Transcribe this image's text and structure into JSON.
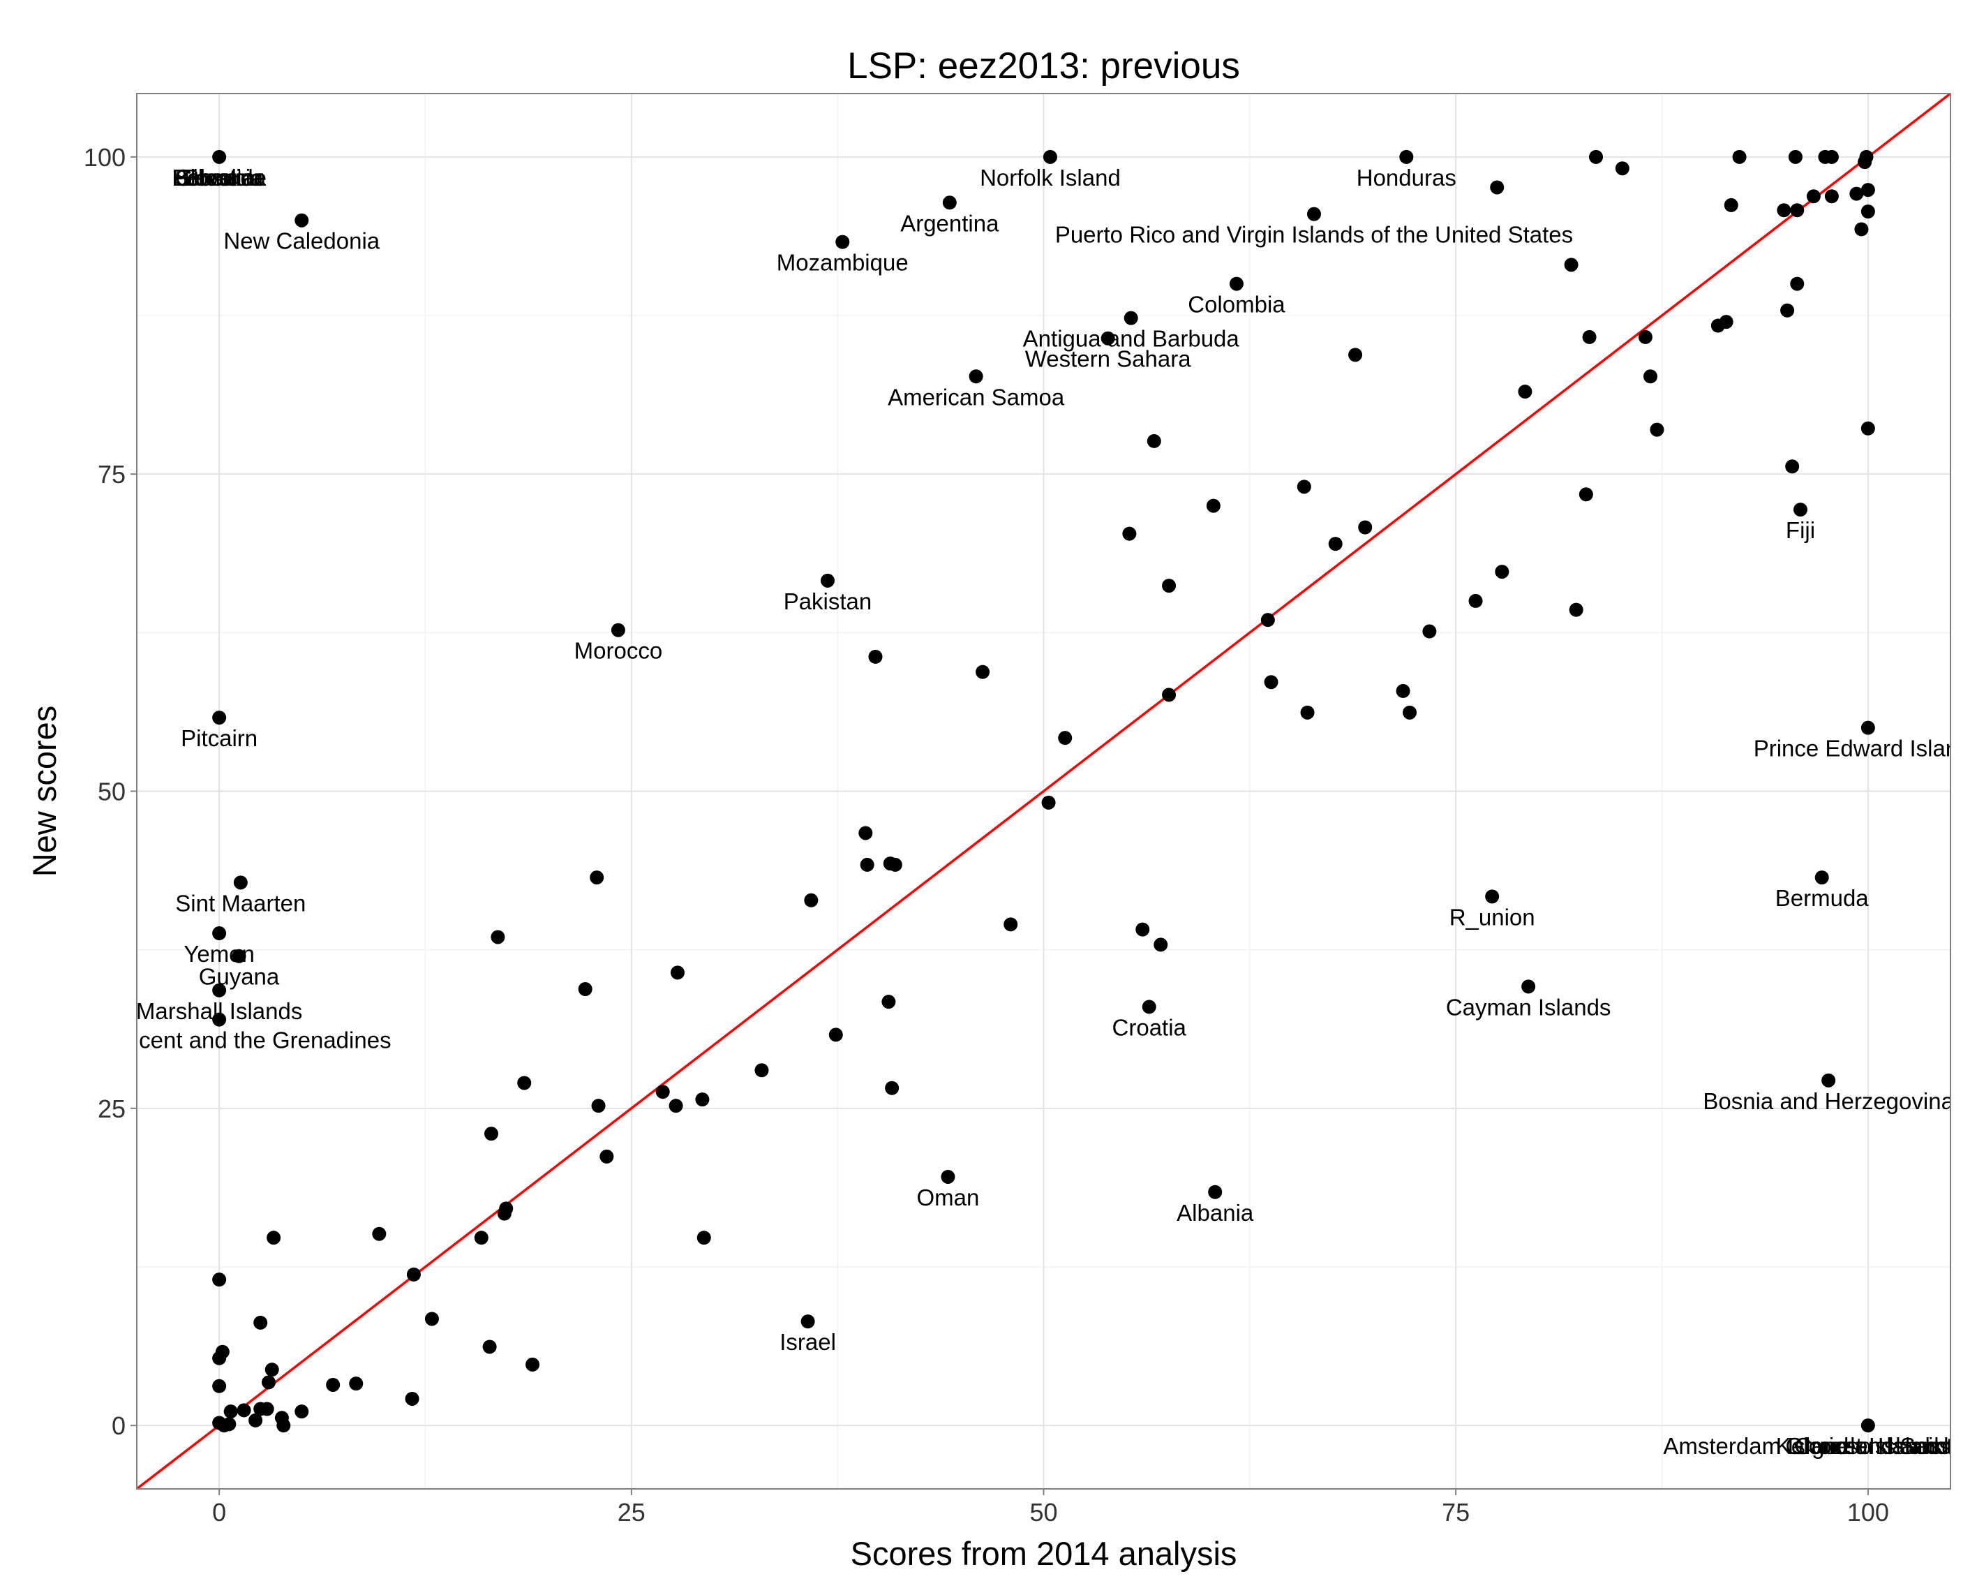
{
  "chart_data": {
    "type": "scatter",
    "title": "LSP: eez2013: previous",
    "xlabel": "Scores from 2014 analysis",
    "ylabel": "New scores",
    "xlim": [
      -5,
      105
    ],
    "ylim": [
      -5,
      105
    ],
    "xticks": [
      0,
      25,
      50,
      75,
      100
    ],
    "yticks": [
      0,
      25,
      50,
      75,
      100
    ],
    "grid": true,
    "reference_line": {
      "type": "y=x",
      "color": "#ff0000"
    },
    "point_color": "#000000",
    "points": [
      [
        0,
        100
      ],
      [
        5,
        95
      ],
      [
        0,
        55.8
      ],
      [
        0,
        38.8
      ],
      [
        1.2,
        37
      ],
      [
        0,
        34.3
      ],
      [
        0,
        32
      ],
      [
        1.3,
        42.8
      ],
      [
        0,
        11.5
      ],
      [
        0,
        5.3
      ],
      [
        0,
        3.1
      ],
      [
        0.2,
        5.8
      ],
      [
        0,
        0.2
      ],
      [
        0.3,
        0
      ],
      [
        0.6,
        0.1
      ],
      [
        0.7,
        1.1
      ],
      [
        1.5,
        1.2
      ],
      [
        2.2,
        0.4
      ],
      [
        2.5,
        1.3
      ],
      [
        2.5,
        8.1
      ],
      [
        2.9,
        1.3
      ],
      [
        3,
        3.4
      ],
      [
        3.2,
        4.4
      ],
      [
        3.3,
        14.8
      ],
      [
        3.8,
        0.6
      ],
      [
        3.9,
        0
      ],
      [
        5,
        1.1
      ],
      [
        6.9,
        3.2
      ],
      [
        8.3,
        3.3
      ],
      [
        9.7,
        15.1
      ],
      [
        11.7,
        2.1
      ],
      [
        11.8,
        11.9
      ],
      [
        12.9,
        8.4
      ],
      [
        15.9,
        14.8
      ],
      [
        16.4,
        6.2
      ],
      [
        16.5,
        23
      ],
      [
        16.9,
        38.5
      ],
      [
        17.3,
        16.7
      ],
      [
        17.4,
        17.1
      ],
      [
        18.5,
        27
      ],
      [
        19,
        4.8
      ],
      [
        22.2,
        34.4
      ],
      [
        22.9,
        43.2
      ],
      [
        23,
        25.2
      ],
      [
        23.5,
        21.2
      ],
      [
        24.2,
        62.7
      ],
      [
        26.9,
        26.3
      ],
      [
        27.7,
        25.2
      ],
      [
        27.8,
        35.7
      ],
      [
        29.3,
        25.7
      ],
      [
        29.4,
        14.8
      ],
      [
        32.9,
        28
      ],
      [
        35.7,
        8.2
      ],
      [
        35.9,
        41.4
      ],
      [
        36.9,
        66.6
      ],
      [
        37.4,
        30.8
      ],
      [
        37.8,
        93.3
      ],
      [
        39.2,
        46.7
      ],
      [
        39.3,
        44.2
      ],
      [
        39.8,
        60.6
      ],
      [
        40.6,
        33.4
      ],
      [
        40.7,
        44.3
      ],
      [
        40.8,
        26.6
      ],
      [
        41,
        44.2
      ],
      [
        44.2,
        19.6
      ],
      [
        44.3,
        96.4
      ],
      [
        45.9,
        82.7
      ],
      [
        46.3,
        59.4
      ],
      [
        48,
        39.5
      ],
      [
        50.3,
        49.1
      ],
      [
        50.4,
        100
      ],
      [
        51.3,
        54.2
      ],
      [
        53.9,
        85.7
      ],
      [
        55.2,
        70.3
      ],
      [
        55.3,
        87.3
      ],
      [
        56,
        39.1
      ],
      [
        56.4,
        33
      ],
      [
        56.7,
        77.6
      ],
      [
        57.1,
        37.9
      ],
      [
        57.6,
        66.2
      ],
      [
        57.6,
        57.6
      ],
      [
        60.3,
        72.5
      ],
      [
        60.4,
        18.4
      ],
      [
        61.7,
        90
      ],
      [
        63.6,
        63.5
      ],
      [
        63.8,
        58.6
      ],
      [
        65.8,
        74
      ],
      [
        66,
        56.2
      ],
      [
        66.4,
        95.5
      ],
      [
        67.7,
        69.5
      ],
      [
        68.9,
        84.4
      ],
      [
        69.5,
        70.8
      ],
      [
        72,
        100
      ],
      [
        71.8,
        57.9
      ],
      [
        72.2,
        56.2
      ],
      [
        73.4,
        62.6
      ],
      [
        76.2,
        65
      ],
      [
        77.2,
        41.7
      ],
      [
        77.5,
        97.6
      ],
      [
        77.8,
        67.3
      ],
      [
        79.2,
        81.5
      ],
      [
        79.4,
        34.6
      ],
      [
        82,
        91.5
      ],
      [
        82.3,
        64.3
      ],
      [
        82.9,
        73.4
      ],
      [
        83.1,
        85.8
      ],
      [
        83.5,
        100
      ],
      [
        85.1,
        99.1
      ],
      [
        86.5,
        85.8
      ],
      [
        86.8,
        82.7
      ],
      [
        87.2,
        78.5
      ],
      [
        90.9,
        86.7
      ],
      [
        91.4,
        87
      ],
      [
        91.7,
        96.2
      ],
      [
        92.2,
        100
      ],
      [
        94.9,
        95.8
      ],
      [
        95.1,
        87.9
      ],
      [
        95.4,
        75.6
      ],
      [
        95.6,
        100
      ],
      [
        95.7,
        95.8
      ],
      [
        95.7,
        90
      ],
      [
        95.9,
        72.2
      ],
      [
        96.7,
        96.9
      ],
      [
        97.2,
        43.2
      ],
      [
        97.4,
        100
      ],
      [
        97.8,
        100
      ],
      [
        97.6,
        27.2
      ],
      [
        97.8,
        96.9
      ],
      [
        99.3,
        97.1
      ],
      [
        99.6,
        94.3
      ],
      [
        99.9,
        100
      ],
      [
        99.8,
        99.6
      ],
      [
        100,
        97.4
      ],
      [
        100,
        95.7
      ],
      [
        100,
        78.6
      ],
      [
        100,
        55
      ],
      [
        100,
        0
      ]
    ],
    "labels": [
      {
        "text": "Gibraltar",
        "x": 0,
        "y": 100
      },
      {
        "text": "Bosnia",
        "x": 0,
        "y": 100
      },
      {
        "text": "Slovenia",
        "x": 0,
        "y": 100
      },
      {
        "text": "Palestine",
        "x": 0,
        "y": 100
      },
      {
        "text": "Bermuda",
        "x": 0,
        "y": 100
      },
      {
        "text": "New Caledonia",
        "x": 5,
        "y": 95
      },
      {
        "text": "Pitcairn",
        "x": 0,
        "y": 55.8
      },
      {
        "text": "Sint Maarten",
        "x": 1.3,
        "y": 42.8
      },
      {
        "text": "Yemen",
        "x": 0,
        "y": 38.8
      },
      {
        "text": "Guyana",
        "x": 1.2,
        "y": 37
      },
      {
        "text": "Marshall Islands",
        "x": 0,
        "y": 34.3
      },
      {
        "text": "Saint Vincent and the Grenadines",
        "x": 0,
        "y": 32
      },
      {
        "text": "Norfolk Island",
        "x": 50.4,
        "y": 100
      },
      {
        "text": "Honduras",
        "x": 72,
        "y": 100
      },
      {
        "text": "Argentina",
        "x": 44.3,
        "y": 96.4
      },
      {
        "text": "Puerto Rico and Virgin Islands of the United States",
        "x": 66.4,
        "y": 95.5
      },
      {
        "text": "Mozambique",
        "x": 37.8,
        "y": 93.3
      },
      {
        "text": "Colombia",
        "x": 61.7,
        "y": 90
      },
      {
        "text": "Antigua and Barbuda",
        "x": 55.3,
        "y": 87.3
      },
      {
        "text": "Western Sahara",
        "x": 53.9,
        "y": 85.7
      },
      {
        "text": "American Samoa",
        "x": 45.9,
        "y": 82.7
      },
      {
        "text": "Fiji",
        "x": 95.9,
        "y": 72.2
      },
      {
        "text": "Pakistan",
        "x": 36.9,
        "y": 66.6
      },
      {
        "text": "Morocco",
        "x": 24.2,
        "y": 62.7
      },
      {
        "text": "Prince Edward Islands",
        "x": 100,
        "y": 55
      },
      {
        "text": "Bermuda",
        "x": 97.2,
        "y": 43.2
      },
      {
        "text": "R_union",
        "x": 77.2,
        "y": 41.7
      },
      {
        "text": "Cayman Islands",
        "x": 79.4,
        "y": 34.6
      },
      {
        "text": "Croatia",
        "x": 56.4,
        "y": 33
      },
      {
        "text": "Bosnia and Herzegovina",
        "x": 97.6,
        "y": 27.2
      },
      {
        "text": "Oman",
        "x": 44.2,
        "y": 19.6
      },
      {
        "text": "Albania",
        "x": 60.4,
        "y": 18.4
      },
      {
        "text": "Israel",
        "x": 35.7,
        "y": 8.2
      },
      {
        "text": "Amsterdam Island and Saint Paul Island",
        "x": 100,
        "y": 0
      },
      {
        "text": "Kerguelen Islands",
        "x": 100,
        "y": 0
      },
      {
        "text": "Crozet Islands",
        "x": 100,
        "y": 0
      },
      {
        "text": "Glorioso Islands",
        "x": 100,
        "y": 0
      }
    ]
  }
}
